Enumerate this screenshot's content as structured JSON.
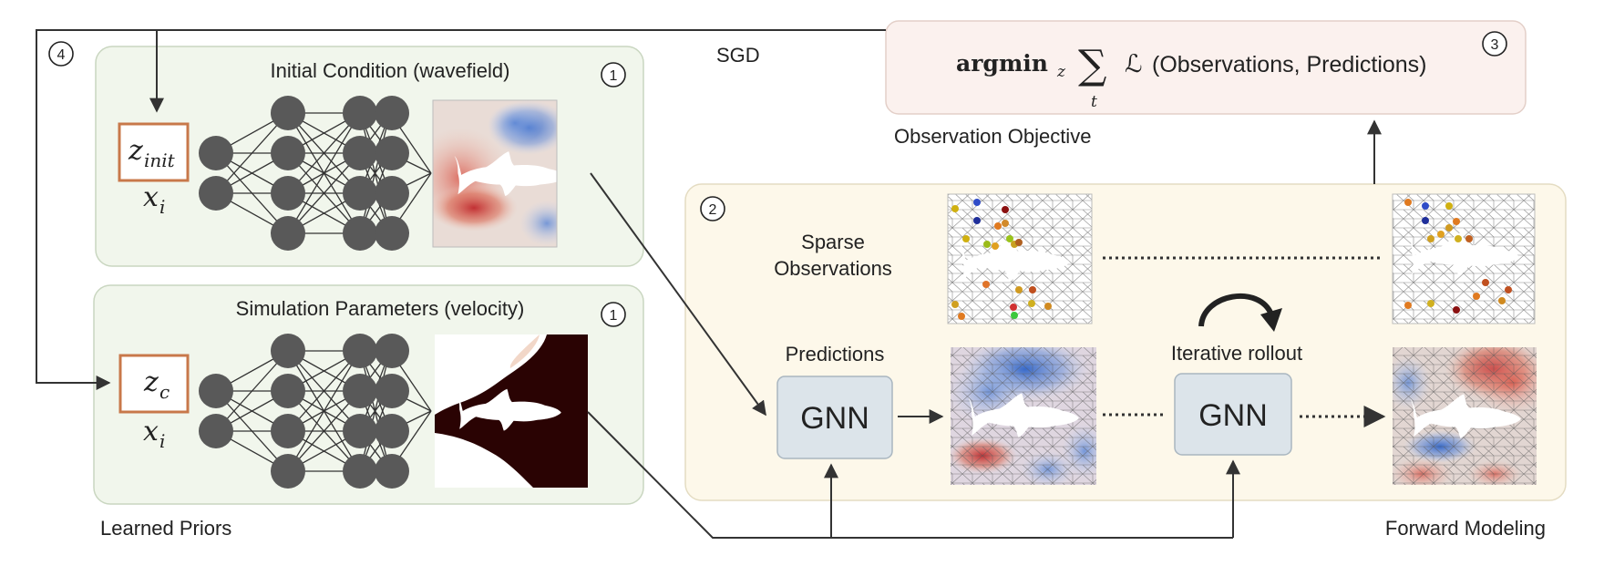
{
  "labels": {
    "sgd": "SGD",
    "step4": "4",
    "step1_ic": "1",
    "step1_sp": "1",
    "step2": "2",
    "step3": "3",
    "initial_condition_title": "Initial Condition (wavefield)",
    "simulation_params_title": "Simulation Parameters (velocity)",
    "learned_priors": "Learned Priors",
    "observation_objective": "Observation Objective",
    "forward_modeling": "Forward Modeling",
    "sparse_observations_line1": "Sparse",
    "sparse_observations_line2": "Observations",
    "predictions": "Predictions",
    "iterative_rollout": "Iterative rollout",
    "gnn_1": "GNN",
    "gnn_2": "GNN"
  },
  "latents": {
    "z_init_main": "z",
    "z_init_sub": "init",
    "z_c_main": "z",
    "z_c_sub": "c",
    "x_i_main": "x",
    "x_i_sub": "i"
  },
  "objective": {
    "argmin": "argmin",
    "argmin_sub": "z",
    "sum_symbol": "∑",
    "sum_sub": "t",
    "loss_symbol": "ℒ",
    "loss_args": "(Observations, Predictions)"
  },
  "colors": {
    "prior_panel_bg": "#f1f6ec",
    "forward_panel_bg": "#fdf8ea",
    "objective_panel_bg": "#fbf1ee",
    "latent_border": "#c8784a",
    "node_fill": "#595959",
    "gnn_fill": "#dce4ea",
    "field_red": "#c0282c",
    "field_blue": "#2f64c8",
    "velocity_dark": "#2a0303"
  }
}
